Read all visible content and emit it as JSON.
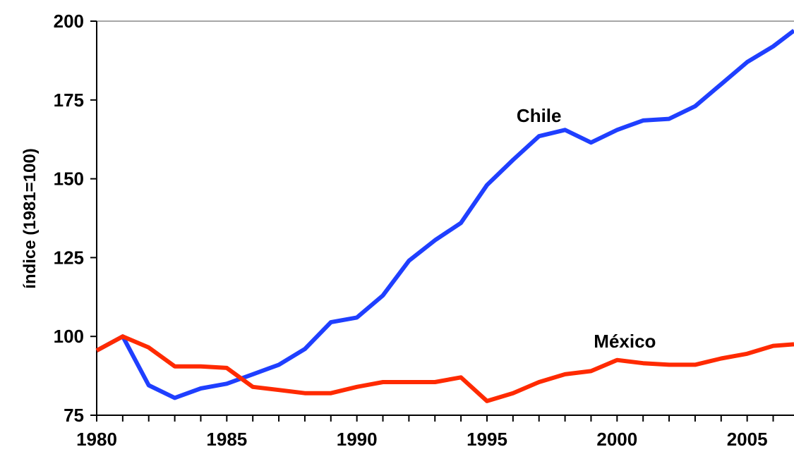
{
  "chart_data": {
    "type": "line",
    "title": "",
    "xlabel": "",
    "ylabel": "índice (1981=100)",
    "xlim": [
      1980,
      2006.8
    ],
    "ylim": [
      75,
      200
    ],
    "x_ticks": [
      1980,
      1985,
      1990,
      1995,
      2000,
      2005
    ],
    "y_ticks": [
      75,
      100,
      125,
      150,
      175,
      200
    ],
    "grid": false,
    "legend": "none",
    "series": [
      {
        "name": "Chile",
        "color": "#1f3fff",
        "x": [
          1980,
          1981,
          1982,
          1983,
          1984,
          1985,
          1986,
          1987,
          1988,
          1989,
          1990,
          1991,
          1992,
          1993,
          1994,
          1995,
          1996,
          1997,
          1998,
          1999,
          2000,
          2001,
          2002,
          2003,
          2004,
          2005,
          2006,
          2006.8
        ],
        "values": [
          95.5,
          100,
          84.5,
          80.5,
          83.5,
          85,
          88,
          91,
          96,
          104.5,
          106,
          113,
          124,
          130.5,
          136,
          148,
          156,
          163.5,
          165.5,
          161.5,
          165.5,
          168.5,
          169,
          173,
          180,
          187,
          192,
          197
        ]
      },
      {
        "name": "México",
        "color": "#ff2a00",
        "x": [
          1980,
          1981,
          1982,
          1983,
          1984,
          1985,
          1986,
          1987,
          1988,
          1989,
          1990,
          1991,
          1992,
          1993,
          1994,
          1995,
          1996,
          1997,
          1998,
          1999,
          2000,
          2001,
          2002,
          2003,
          2004,
          2005,
          2006,
          2006.8
        ],
        "values": [
          95.5,
          100,
          96.5,
          90.5,
          90.5,
          90,
          84,
          83,
          82,
          82,
          84,
          85.5,
          85.5,
          85.5,
          87,
          79.5,
          82,
          85.5,
          88,
          89,
          92.5,
          91.5,
          91,
          91,
          93,
          94.5,
          97,
          97.5
        ]
      }
    ],
    "annotations": [
      {
        "text": "Chile",
        "x": 1997,
        "y": 168
      },
      {
        "text": "México",
        "x": 2000.3,
        "y": 96.5
      }
    ]
  }
}
